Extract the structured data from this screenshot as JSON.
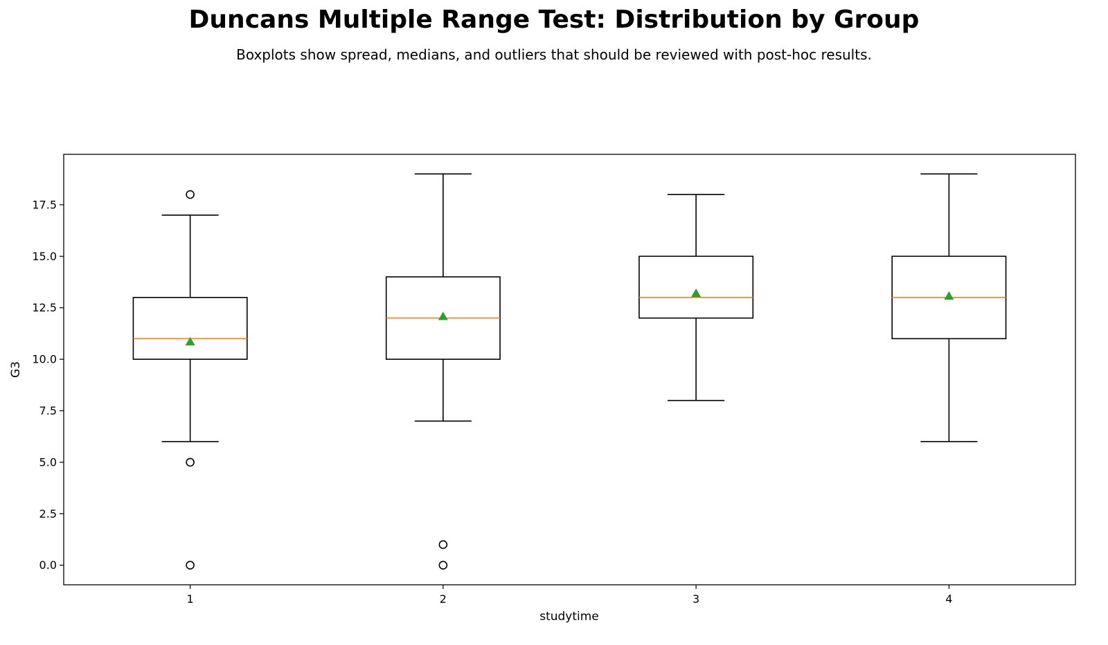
{
  "title": "Duncans Multiple Range Test: Distribution by Group",
  "subtitle": "Boxplots show spread, medians, and outliers that should be reviewed with post-hoc results.",
  "colors": {
    "box": "#000000",
    "median": "#ff7f0e",
    "mean": "#2ca02c",
    "outlier": "#000000"
  },
  "chart_data": {
    "type": "boxplot",
    "xlabel": "studytime",
    "ylabel": "G3",
    "ylim": [
      -0.95,
      19.95
    ],
    "yticks": [
      0.0,
      2.5,
      5.0,
      7.5,
      10.0,
      12.5,
      15.0,
      17.5
    ],
    "ytick_labels": [
      "0.0",
      "2.5",
      "5.0",
      "7.5",
      "10.0",
      "12.5",
      "15.0",
      "17.5"
    ],
    "categories": [
      "1",
      "2",
      "3",
      "4"
    ],
    "groups": [
      {
        "category": "1",
        "whisker_low": 6,
        "q1": 10,
        "median": 11,
        "q3": 13,
        "whisker_high": 17,
        "mean": 10.85,
        "outliers": [
          0,
          5,
          18
        ]
      },
      {
        "category": "2",
        "whisker_low": 7,
        "q1": 10,
        "median": 12,
        "q3": 14,
        "whisker_high": 19,
        "mean": 12.08,
        "outliers": [
          0,
          1
        ]
      },
      {
        "category": "3",
        "whisker_low": 8,
        "q1": 12,
        "median": 13,
        "q3": 15,
        "whisker_high": 18,
        "mean": 13.2,
        "outliers": []
      },
      {
        "category": "4",
        "whisker_low": 6,
        "q1": 11,
        "median": 13,
        "q3": 15,
        "whisker_high": 19,
        "mean": 13.07,
        "outliers": []
      }
    ],
    "grid": false,
    "legend": "none"
  }
}
